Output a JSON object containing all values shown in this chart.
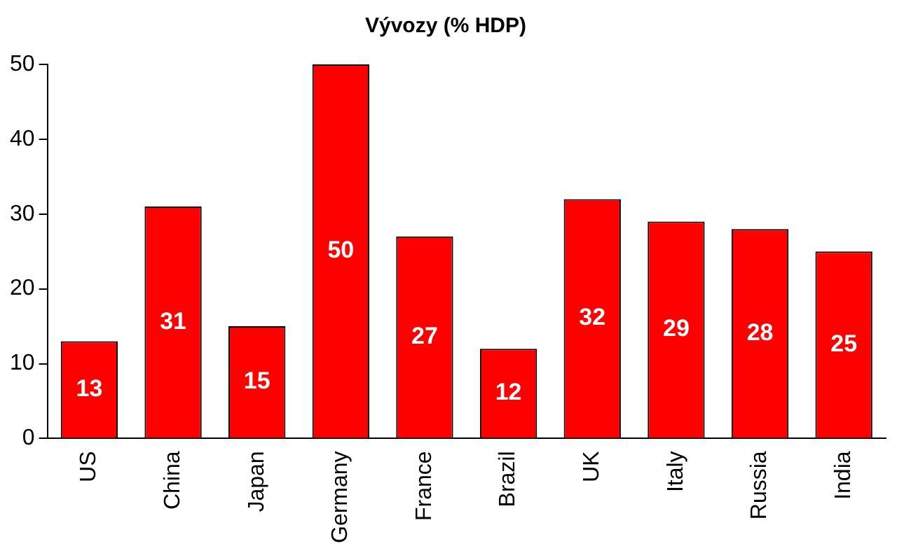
{
  "chart_data": {
    "type": "bar",
    "title": "Vývozy (% HDP)",
    "categories": [
      "US",
      "China",
      "Japan",
      "Germany",
      "France",
      "Brazil",
      "UK",
      "Italy",
      "Russia",
      "India"
    ],
    "values": [
      13,
      31,
      15,
      50,
      27,
      12,
      32,
      29,
      28,
      25
    ],
    "color": "#ff0000",
    "ylim": [
      0,
      50
    ],
    "yticks": [
      0,
      10,
      20,
      30,
      40,
      50
    ],
    "grid": false,
    "legend": false,
    "data_labels": true
  }
}
